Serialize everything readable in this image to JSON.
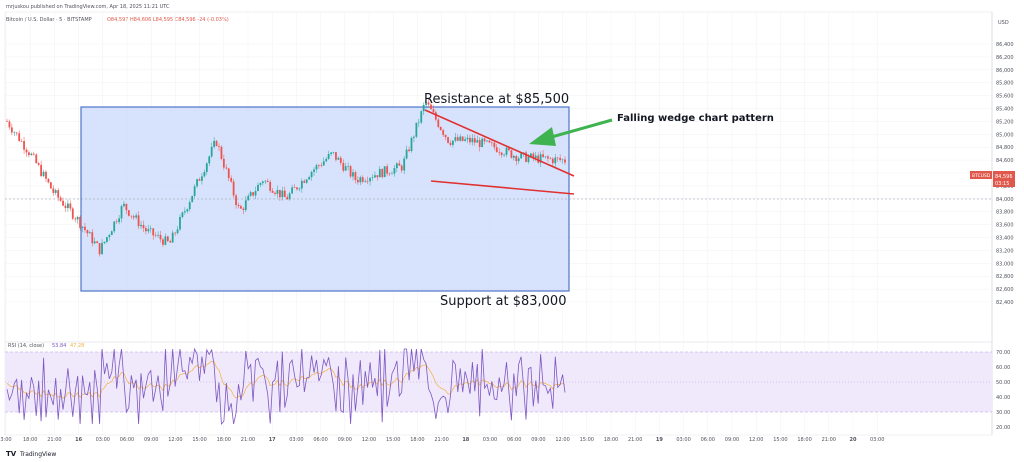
{
  "header": {
    "publisher": "mrjuskou published on TradingView.com, Apr 18, 2025 11:21 UTC"
  },
  "legend": {
    "symbol": "Bitcoin / U.S. Dollar · 5 · BITSTAMP",
    "ohlc": "O84,597 H84,606 L84,595 C84,596 -24 (-0.03%)"
  },
  "price_axis": {
    "currency": "USD",
    "ticks": [
      "86,400",
      "86,200",
      "86,000",
      "85,800",
      "85,600",
      "85,400",
      "85,200",
      "85,000",
      "84,800",
      "84,600",
      "84,400",
      "84,200",
      "84,000",
      "83,800",
      "83,600",
      "83,400",
      "83,200",
      "83,000",
      "82,800",
      "82,600",
      "82,400"
    ],
    "symbol_badge": "BTCUSD",
    "last_price": "84,596",
    "countdown": "03:15"
  },
  "rsi": {
    "label": "RSI (14, close)",
    "value": "53.84",
    "ma_value": "47.28",
    "ticks": [
      "70.00",
      "60.00",
      "50.00",
      "40.00",
      "30.00",
      "20.00"
    ]
  },
  "time_axis": {
    "ticks": [
      "3:00",
      "18:00",
      "21:00",
      "16",
      "03:00",
      "06:00",
      "09:00",
      "12:00",
      "15:00",
      "18:00",
      "21:00",
      "17",
      "03:00",
      "06:00",
      "09:00",
      "12:00",
      "15:00",
      "18:00",
      "21:00",
      "18",
      "03:00",
      "06:00",
      "09:00",
      "12:00",
      "15:00",
      "18:00",
      "21:00",
      "19",
      "03:00",
      "06:00",
      "09:00",
      "12:00",
      "15:00",
      "18:00",
      "21:00",
      "20",
      "03:00"
    ]
  },
  "annotations": {
    "resistance": "Resistance at $85,500",
    "support": "Support at $83,000",
    "wedge": "Falling wedge chart pattern"
  },
  "footer": {
    "brand": "TradingView"
  },
  "colors": {
    "range_fill": "#c9d9fb",
    "range_border": "#4f74c9",
    "wedge_line": "#e03131",
    "arrow": "#3fb34f",
    "candle_up": "#26a69a",
    "candle_down": "#ef5350",
    "rsi_line": "#7e57c2",
    "rsi_ma": "#f5b041",
    "rsi_band": "#efe9fb"
  },
  "chart_data": {
    "type": "candlestick",
    "title": "Bitcoin / U.S. Dollar · 5 · BITSTAMP",
    "ylim": [
      82300,
      86500
    ],
    "levels": {
      "resistance": 85500,
      "support": 83000
    },
    "series": [
      {
        "name": "BTCUSD",
        "values": [
          {
            "x": "15 00:00",
            "y": 85200
          },
          {
            "x": "15 06:00",
            "y": 84700
          },
          {
            "x": "15 12:00",
            "y": 84100
          },
          {
            "x": "15 18:00",
            "y": 83700
          },
          {
            "x": "15 21:00",
            "y": 83200
          },
          {
            "x": "16 03:00",
            "y": 83900
          },
          {
            "x": "16 06:00",
            "y": 83500
          },
          {
            "x": "16 09:00",
            "y": 83300
          },
          {
            "x": "16 12:00",
            "y": 84100
          },
          {
            "x": "16 15:00",
            "y": 84900
          },
          {
            "x": "16 18:00",
            "y": 83800
          },
          {
            "x": "16 21:00",
            "y": 84300
          },
          {
            "x": "17 00:00",
            "y": 84000
          },
          {
            "x": "17 03:00",
            "y": 84400
          },
          {
            "x": "17 06:00",
            "y": 84700
          },
          {
            "x": "17 09:00",
            "y": 84300
          },
          {
            "x": "17 12:00",
            "y": 84400
          },
          {
            "x": "17 15:00",
            "y": 84500
          },
          {
            "x": "17 18:00",
            "y": 85500
          },
          {
            "x": "17 21:00",
            "y": 84900
          },
          {
            "x": "18 00:00",
            "y": 84900
          },
          {
            "x": "18 03:00",
            "y": 84800
          },
          {
            "x": "18 06:00",
            "y": 84650
          },
          {
            "x": "18 09:00",
            "y": 84620
          },
          {
            "x": "18 11:00",
            "y": 84596
          }
        ]
      }
    ],
    "wedge": {
      "upper": [
        {
          "x": "17 18:00",
          "y": 85500
        },
        {
          "x": "18 12:00",
          "y": 84550
        }
      ],
      "lower": [
        {
          "x": "17 18:00",
          "y": 84500
        },
        {
          "x": "18 12:00",
          "y": 84280
        }
      ]
    },
    "rsi_ylim": [
      20,
      75
    ],
    "rsi_band": [
      30,
      70
    ]
  }
}
